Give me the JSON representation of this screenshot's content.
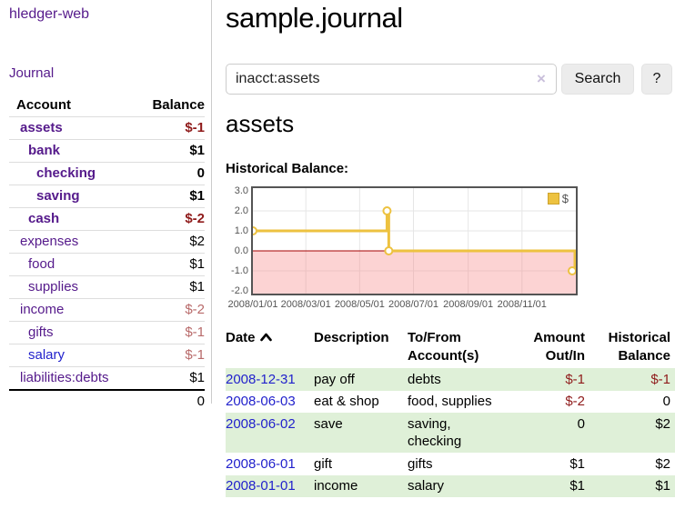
{
  "app": {
    "title": "hledger-web"
  },
  "nav": {
    "journal": "Journal"
  },
  "sidebar": {
    "headers": {
      "account": "Account",
      "balance": "Balance"
    },
    "accounts": [
      {
        "name": "assets",
        "balance": "$-1"
      },
      {
        "name": "bank",
        "balance": "$1"
      },
      {
        "name": "checking",
        "balance": "0"
      },
      {
        "name": "saving",
        "balance": "$1"
      },
      {
        "name": "cash",
        "balance": "$-2"
      },
      {
        "name": "expenses",
        "balance": "$2"
      },
      {
        "name": "food",
        "balance": "$1"
      },
      {
        "name": "supplies",
        "balance": "$1"
      },
      {
        "name": "income",
        "balance": "$-2"
      },
      {
        "name": "gifts",
        "balance": "$-1"
      },
      {
        "name": "salary",
        "balance": "$-1"
      },
      {
        "name": "liabilities:debts",
        "balance": "$1"
      }
    ],
    "total": "0"
  },
  "main": {
    "title": "sample.journal",
    "search": {
      "value": "inacct:assets",
      "clear": "×",
      "button": "Search",
      "help": "?"
    },
    "account_heading": "assets",
    "chart_label": "Historical Balance:"
  },
  "register": {
    "headers": {
      "date": "Date",
      "description": "Description",
      "tofrom": "To/From Account(s)",
      "amount": "Amount Out/In",
      "balance": "Historical Balance"
    },
    "rows": [
      {
        "date": "2008-12-31",
        "description": "pay off",
        "accounts": "debts",
        "amount": "$-1",
        "balance": "$-1"
      },
      {
        "date": "2008-06-03",
        "description": "eat & shop",
        "accounts": "food, supplies",
        "amount": "$-2",
        "balance": "0"
      },
      {
        "date": "2008-06-02",
        "description": "save",
        "accounts": "saving, checking",
        "amount": "0",
        "balance": "$2"
      },
      {
        "date": "2008-06-01",
        "description": "gift",
        "accounts": "gifts",
        "amount": "$1",
        "balance": "$2"
      },
      {
        "date": "2008-01-01",
        "description": "income",
        "accounts": "salary",
        "amount": "$1",
        "balance": "$1"
      }
    ]
  },
  "chart_data": {
    "type": "line",
    "line_style": "step-after",
    "title": "Historical Balance:",
    "series": [
      {
        "name": "$",
        "color": "#edc240",
        "points": [
          [
            "2008-01-01",
            1
          ],
          [
            "2008-06-01",
            2
          ],
          [
            "2008-06-03",
            0
          ],
          [
            "2008-12-31",
            -1
          ]
        ]
      }
    ],
    "x_range": [
      "2008-01-01",
      "2008-12-31"
    ],
    "ylim": [
      -2,
      3
    ],
    "yticks": [
      3,
      2,
      1,
      0,
      -1,
      -2
    ],
    "ytick_labels": [
      "3.0",
      "2.0",
      "1.0",
      "0.0",
      "-1.0",
      "-2.0"
    ],
    "xtick_dates": [
      "2008-01-01",
      "2008-03-01",
      "2008-05-01",
      "2008-07-01",
      "2008-09-01",
      "2008-11-01"
    ],
    "xtick_labels": [
      "2008/01/01",
      "2008/03/01",
      "2008/05/01",
      "2008/07/01",
      "2008/09/01",
      "2008/11/01"
    ],
    "legend": {
      "label": "$",
      "position": "top-right"
    },
    "grid": true,
    "negative_fill": "rgba(245,130,130,0.35)",
    "zero_line_color": "#a40000",
    "grid_color": "#e6e6e6",
    "border_color": "#545454"
  },
  "colors": {
    "link_purple": "#551a8b",
    "link_blue": "#2222cc",
    "negative_strong": "#8f1b1b",
    "negative_dim": "#b86a6a",
    "row_green": "#dff0d8",
    "series_gold": "#edc240"
  }
}
